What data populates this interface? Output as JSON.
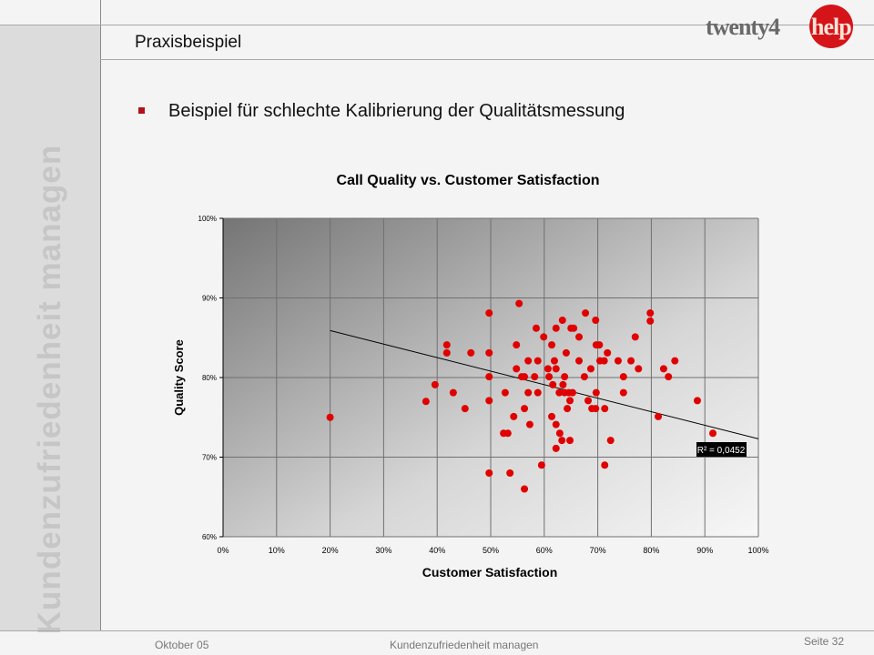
{
  "sidebar": {
    "vertical_title": "Kundenzufriedenheit managen"
  },
  "header": {
    "title": "Praxisbeispiel",
    "logo_text_left": "twenty4",
    "logo_text_right": "help"
  },
  "content": {
    "bullet": "Beispiel für schlechte Kalibrierung der Qualitätsmessung"
  },
  "footer": {
    "date": "Oktober 05",
    "center": "Kundenzufriedenheit managen",
    "page": "Seite 32"
  },
  "colors": {
    "marker": "#e00000",
    "bullet": "#b0121a",
    "logo_red": "#d5141a"
  },
  "chart_data": {
    "type": "scatter",
    "title": "Call Quality vs. Customer Satisfaction",
    "xlabel": "Customer Satisfaction",
    "ylabel": "Quality Score",
    "xlim": [
      0,
      100
    ],
    "ylim": [
      60,
      100
    ],
    "xticks": [
      "0%",
      "10%",
      "20%",
      "30%",
      "40%",
      "50%",
      "60%",
      "70%",
      "80%",
      "90%",
      "100%"
    ],
    "yticks": [
      "60%",
      "70%",
      "80%",
      "90%",
      "100%"
    ],
    "grid": true,
    "trendline": {
      "type": "linear",
      "x_range": [
        20,
        100
      ],
      "intercept": 89.3,
      "slope": -0.17,
      "label": "R² = 0,0452"
    },
    "points": [
      [
        20,
        75
      ],
      [
        37.9,
        77
      ],
      [
        39.6,
        79.1
      ],
      [
        41.8,
        84.1
      ],
      [
        41.8,
        83.1
      ],
      [
        43,
        78.1
      ],
      [
        45.2,
        76.1
      ],
      [
        46.3,
        83.1
      ],
      [
        55.3,
        89.3
      ],
      [
        49.7,
        88.1
      ],
      [
        67.7,
        88.1
      ],
      [
        79.8,
        88.1
      ],
      [
        79.8,
        87.1
      ],
      [
        63.4,
        87.2
      ],
      [
        69.6,
        87.2
      ],
      [
        58.5,
        86.2
      ],
      [
        62.2,
        86.2
      ],
      [
        65,
        86.2
      ],
      [
        65.5,
        86.2
      ],
      [
        59.9,
        85.1
      ],
      [
        66.5,
        85.1
      ],
      [
        77,
        85.1
      ],
      [
        54.8,
        84.1
      ],
      [
        61.4,
        84.1
      ],
      [
        69.7,
        84.1
      ],
      [
        70.3,
        84.1
      ],
      [
        49.7,
        83.1
      ],
      [
        64.1,
        83.1
      ],
      [
        71.8,
        83.1
      ],
      [
        57,
        82.1
      ],
      [
        58.8,
        82.1
      ],
      [
        61.9,
        82.1
      ],
      [
        66.5,
        82.1
      ],
      [
        70.4,
        82.1
      ],
      [
        71.2,
        82.1
      ],
      [
        73.8,
        82.1
      ],
      [
        76.2,
        82.1
      ],
      [
        84.4,
        82.1
      ],
      [
        54.8,
        81.1
      ],
      [
        60.7,
        81.1
      ],
      [
        62.2,
        81.1
      ],
      [
        68.7,
        81.1
      ],
      [
        77.6,
        81.1
      ],
      [
        82.3,
        81.1
      ],
      [
        49.7,
        80.1
      ],
      [
        55.8,
        80.1
      ],
      [
        56.3,
        80.1
      ],
      [
        58.2,
        80.1
      ],
      [
        60.9,
        80.1
      ],
      [
        63.8,
        80.1
      ],
      [
        67.5,
        80.1
      ],
      [
        74.8,
        80.1
      ],
      [
        83.2,
        80.1
      ],
      [
        61.6,
        79.1
      ],
      [
        63.5,
        79.1
      ],
      [
        52.7,
        78.1
      ],
      [
        57,
        78.1
      ],
      [
        58.8,
        78.1
      ],
      [
        62.8,
        78.1
      ],
      [
        63.8,
        78.1
      ],
      [
        64.6,
        78.1
      ],
      [
        65.3,
        78.1
      ],
      [
        69.7,
        78.1
      ],
      [
        74.8,
        78.1
      ],
      [
        49.7,
        77.1
      ],
      [
        64.8,
        77.1
      ],
      [
        68.2,
        77.1
      ],
      [
        88.6,
        77.1
      ],
      [
        56.3,
        76.1
      ],
      [
        64.3,
        76.1
      ],
      [
        68.9,
        76.1
      ],
      [
        69.6,
        76.1
      ],
      [
        71.3,
        76.1
      ],
      [
        54.3,
        75.1
      ],
      [
        61.4,
        75.1
      ],
      [
        81.3,
        75.1
      ],
      [
        57.3,
        74.1
      ],
      [
        62.2,
        74.1
      ],
      [
        52.4,
        73
      ],
      [
        53.2,
        73
      ],
      [
        62.9,
        73
      ],
      [
        91.5,
        73
      ],
      [
        63.3,
        72.1
      ],
      [
        64.8,
        72.1
      ],
      [
        72.4,
        72.1
      ],
      [
        62.2,
        71.1
      ],
      [
        59.5,
        69
      ],
      [
        71.3,
        69
      ],
      [
        49.7,
        68
      ],
      [
        53.6,
        68
      ],
      [
        56.3,
        66
      ]
    ]
  }
}
